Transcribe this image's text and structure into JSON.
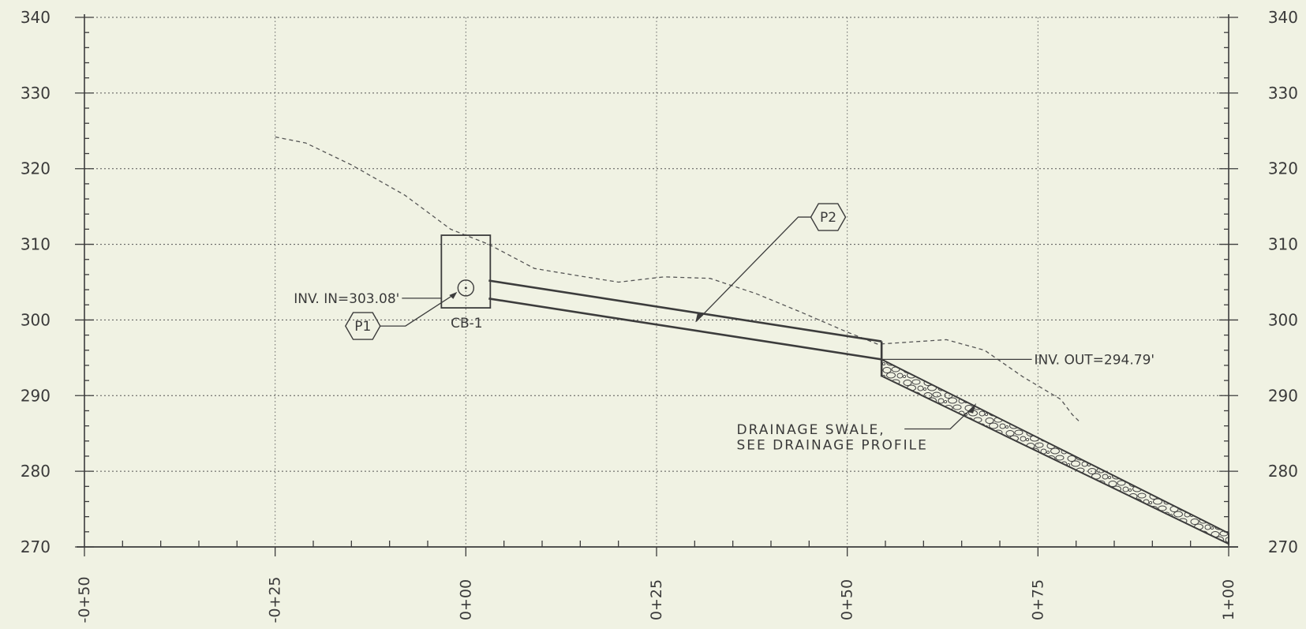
{
  "profile": {
    "elevations": [
      340,
      330,
      320,
      310,
      300,
      290,
      280,
      270
    ],
    "stations": [
      "-0+50",
      "-0+25",
      "0+00",
      "0+25",
      "0+50",
      "0+75",
      "1+00"
    ],
    "elevation_range": [
      270,
      340
    ],
    "station_range": [
      -50,
      100
    ],
    "existing_ground": [
      [
        -25,
        324.2
      ],
      [
        -21,
        323.4
      ],
      [
        -15,
        320.5
      ],
      [
        -8,
        316.5
      ],
      [
        -2,
        312.0
      ],
      [
        0,
        311.2
      ],
      [
        3,
        310.0
      ],
      [
        9,
        306.8
      ],
      [
        15,
        305.8
      ],
      [
        20,
        305.0
      ],
      [
        26,
        305.7
      ],
      [
        32,
        305.5
      ],
      [
        38,
        303.5
      ],
      [
        44,
        301.0
      ],
      [
        50,
        298.4
      ],
      [
        54,
        296.8
      ],
      [
        57,
        297.0
      ],
      [
        63,
        297.4
      ],
      [
        68,
        296.0
      ],
      [
        73,
        292.5
      ],
      [
        78,
        289.5
      ],
      [
        79.5,
        287.5
      ],
      [
        80.5,
        286.5
      ]
    ],
    "pipe": {
      "start_station": 3,
      "end_station": 54.5,
      "invert_in": 303.08,
      "invert_out": 294.79
    },
    "catch_basin": {
      "station": 0,
      "top": 311.2,
      "bottom": 301.6
    },
    "swale": {
      "start_station": 54.5,
      "end_station": 100
    }
  },
  "labels": {
    "catch_basin": "CB-1",
    "inv_in": "INV. IN=303.08'",
    "inv_out": "INV. OUT=294.79'",
    "swale_note": [
      "DRAINAGE SWALE,",
      "SEE DRAINAGE PROFILE"
    ],
    "tag_p1": "P1",
    "tag_p2": "P2"
  },
  "colors": {
    "line": "#3c3c3c",
    "grid": "#555555",
    "background": "#f0f2e3"
  }
}
